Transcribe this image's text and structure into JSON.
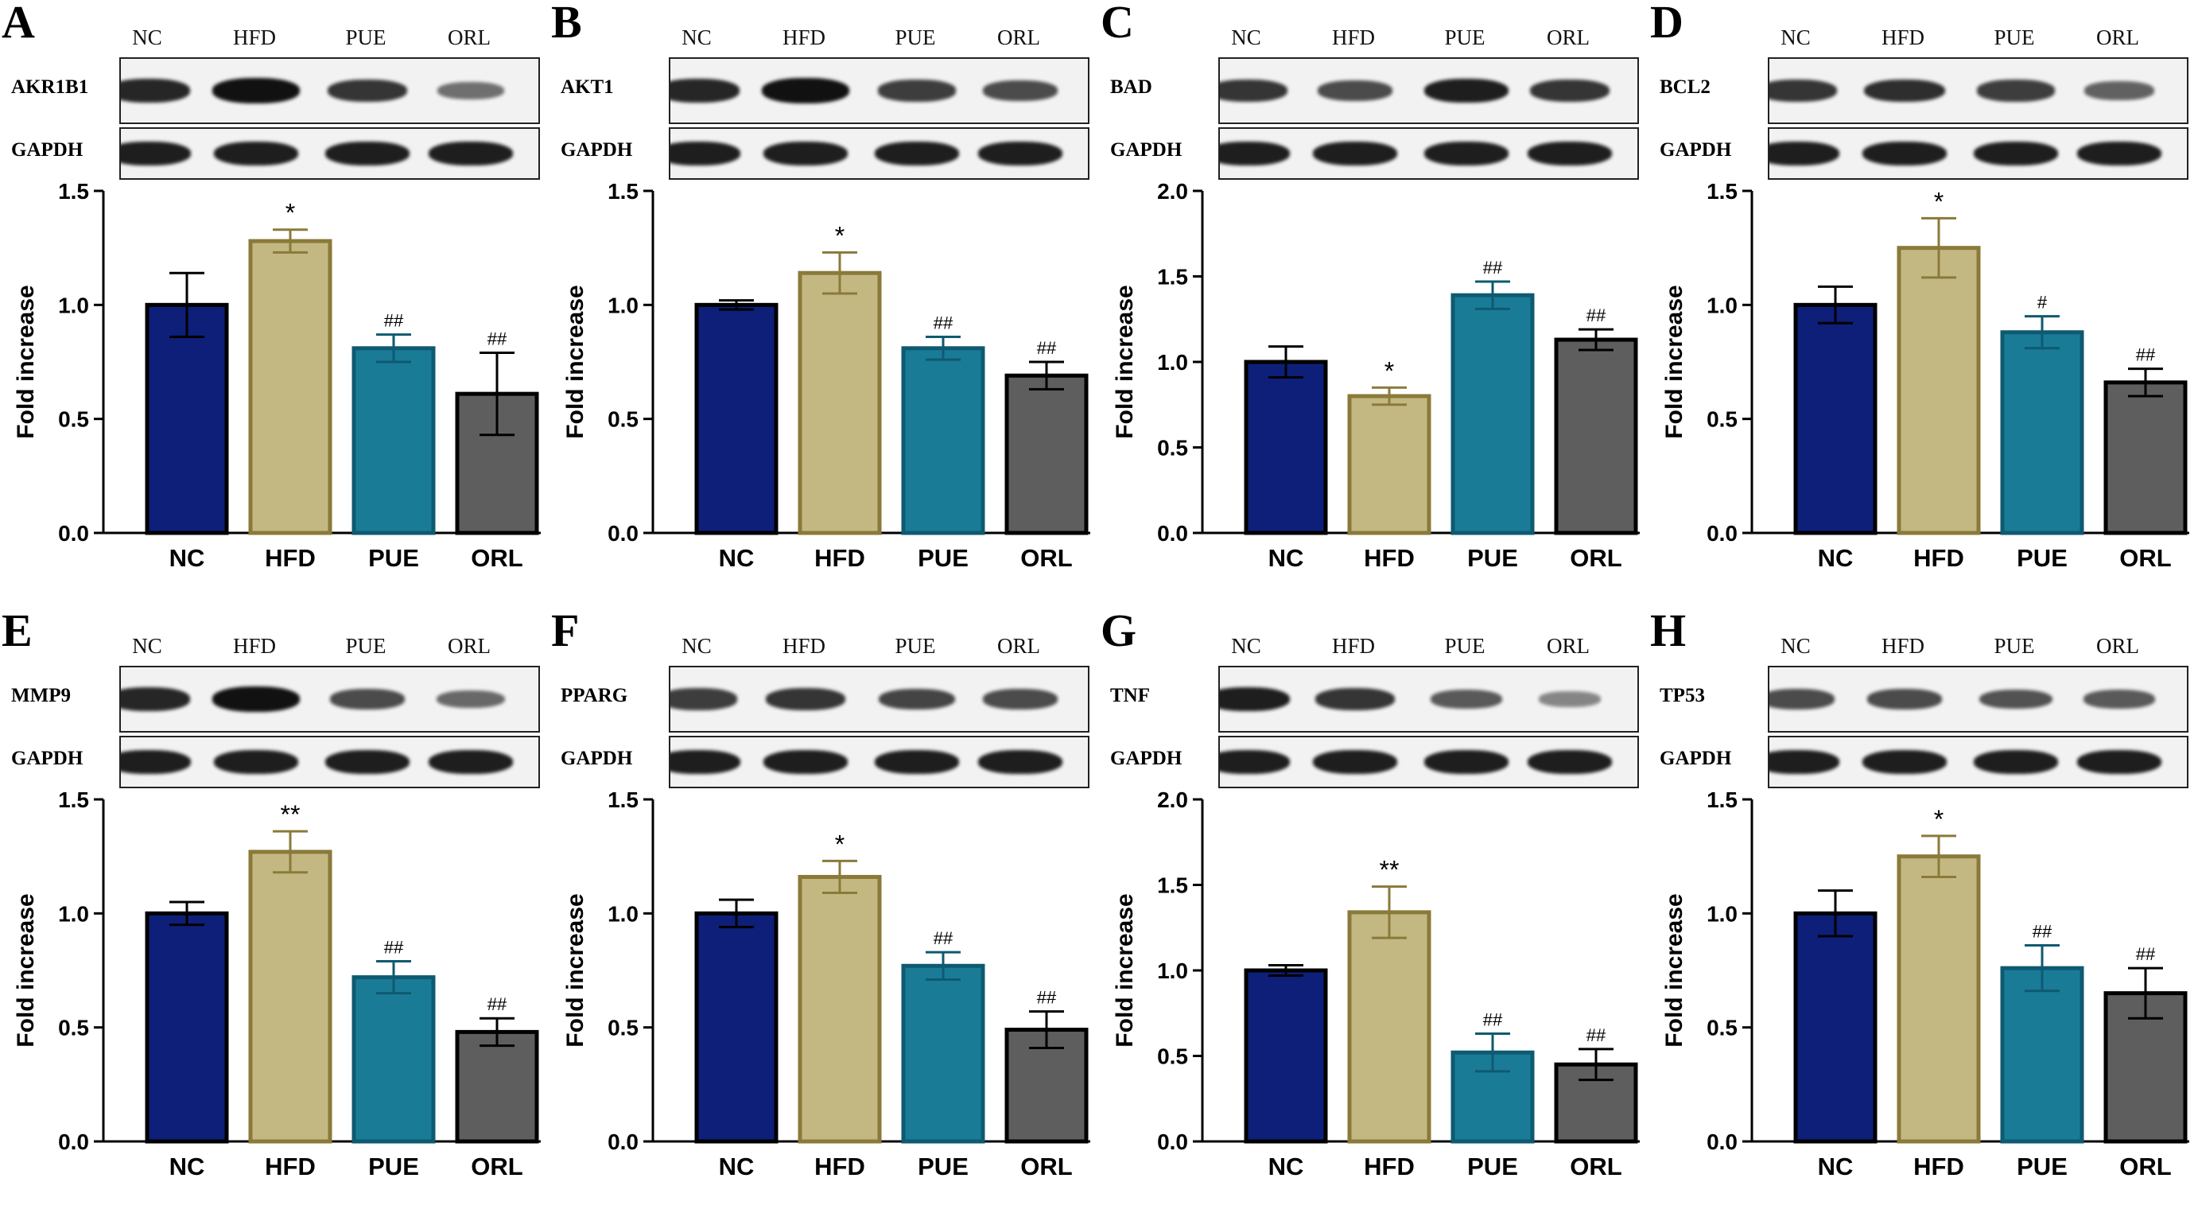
{
  "lanes": [
    "NC",
    "HFD",
    "PUE",
    "ORL"
  ],
  "loading_control": "GAPDH",
  "colors": {
    "NC": "#0d1f78",
    "HFD": "#c4b882",
    "PUE": "#1a7b97",
    "ORL": "#5e5e5e"
  },
  "chart_data": [
    {
      "panel": "A",
      "protein": "AKR1B1",
      "type": "bar",
      "ylabel": "Fold increase",
      "ylim": [
        0,
        1.5
      ],
      "yticks": [
        "0.0",
        "0.5",
        "1.0",
        "1.5"
      ],
      "categories": [
        "NC",
        "HFD",
        "PUE",
        "ORL"
      ],
      "values": [
        1.0,
        1.28,
        0.81,
        0.61
      ],
      "errors": [
        0.14,
        0.05,
        0.06,
        0.18
      ],
      "annotations": [
        "",
        "*",
        "##",
        "##"
      ],
      "band_intensity": [
        0.85,
        1.0,
        0.75,
        0.35
      ]
    },
    {
      "panel": "B",
      "protein": "AKT1",
      "type": "bar",
      "ylabel": "Fold increase",
      "ylim": [
        0,
        1.5
      ],
      "yticks": [
        "0.0",
        "0.5",
        "1.0",
        "1.5"
      ],
      "categories": [
        "NC",
        "HFD",
        "PUE",
        "ORL"
      ],
      "values": [
        1.0,
        1.14,
        0.81,
        0.69
      ],
      "errors": [
        0.02,
        0.09,
        0.05,
        0.06
      ],
      "annotations": [
        "",
        "*",
        "##",
        "##"
      ],
      "band_intensity": [
        0.85,
        1.0,
        0.7,
        0.6
      ]
    },
    {
      "panel": "C",
      "protein": "BAD",
      "type": "bar",
      "ylabel": "Fold increase",
      "ylim": [
        0,
        2.0
      ],
      "yticks": [
        "0.0",
        "0.5",
        "1.0",
        "1.5",
        "2.0"
      ],
      "categories": [
        "NC",
        "HFD",
        "PUE",
        "ORL"
      ],
      "values": [
        1.0,
        0.8,
        1.39,
        1.13
      ],
      "errors": [
        0.09,
        0.05,
        0.08,
        0.06
      ],
      "annotations": [
        "",
        "*",
        "##",
        "##"
      ],
      "band_intensity": [
        0.75,
        0.6,
        0.9,
        0.75
      ]
    },
    {
      "panel": "D",
      "protein": "BCL2",
      "type": "bar",
      "ylabel": "Fold increase",
      "ylim": [
        0,
        1.5
      ],
      "yticks": [
        "0.0",
        "0.5",
        "1.0",
        "1.5"
      ],
      "categories": [
        "NC",
        "HFD",
        "PUE",
        "ORL"
      ],
      "values": [
        1.0,
        1.25,
        0.88,
        0.66
      ],
      "errors": [
        0.08,
        0.13,
        0.07,
        0.06
      ],
      "annotations": [
        "",
        "*",
        "#",
        "##"
      ],
      "band_intensity": [
        0.75,
        0.8,
        0.7,
        0.45
      ]
    },
    {
      "panel": "E",
      "protein": "MMP9",
      "type": "bar",
      "ylabel": "Fold increase",
      "ylim": [
        0,
        1.5
      ],
      "yticks": [
        "0.0",
        "0.5",
        "1.0",
        "1.5"
      ],
      "categories": [
        "NC",
        "HFD",
        "PUE",
        "ORL"
      ],
      "values": [
        1.0,
        1.27,
        0.72,
        0.48
      ],
      "errors": [
        0.05,
        0.09,
        0.07,
        0.06
      ],
      "annotations": [
        "",
        "**",
        "##",
        "##"
      ],
      "band_intensity": [
        0.85,
        1.0,
        0.6,
        0.4
      ]
    },
    {
      "panel": "F",
      "protein": "PPARG",
      "type": "bar",
      "ylabel": "Fold increase",
      "ylim": [
        0,
        1.5
      ],
      "yticks": [
        "0.0",
        "0.5",
        "1.0",
        "1.5"
      ],
      "categories": [
        "NC",
        "HFD",
        "PUE",
        "ORL"
      ],
      "values": [
        1.0,
        1.16,
        0.77,
        0.49
      ],
      "errors": [
        0.06,
        0.07,
        0.06,
        0.08
      ],
      "annotations": [
        "",
        "*",
        "##",
        "##"
      ],
      "band_intensity": [
        0.7,
        0.75,
        0.65,
        0.6
      ]
    },
    {
      "panel": "G",
      "protein": "TNF",
      "type": "bar",
      "ylabel": "Fold increase",
      "ylim": [
        0,
        2.0
      ],
      "yticks": [
        "0.0",
        "0.5",
        "1.0",
        "1.5",
        "2.0"
      ],
      "categories": [
        "NC",
        "HFD",
        "PUE",
        "ORL"
      ],
      "values": [
        1.0,
        1.34,
        0.52,
        0.45
      ],
      "errors": [
        0.03,
        0.15,
        0.11,
        0.09
      ],
      "annotations": [
        "",
        "**",
        "##",
        "##"
      ],
      "band_intensity": [
        0.9,
        0.75,
        0.5,
        0.2
      ]
    },
    {
      "panel": "H",
      "protein": "TP53",
      "type": "bar",
      "ylabel": "Fold increase",
      "ylim": [
        0,
        1.5
      ],
      "yticks": [
        "0.0",
        "0.5",
        "1.0",
        "1.5"
      ],
      "categories": [
        "NC",
        "HFD",
        "PUE",
        "ORL"
      ],
      "values": [
        1.0,
        1.25,
        0.76,
        0.65
      ],
      "errors": [
        0.1,
        0.09,
        0.1,
        0.11
      ],
      "annotations": [
        "",
        "*",
        "##",
        "##"
      ],
      "band_intensity": [
        0.6,
        0.6,
        0.55,
        0.5
      ]
    }
  ]
}
